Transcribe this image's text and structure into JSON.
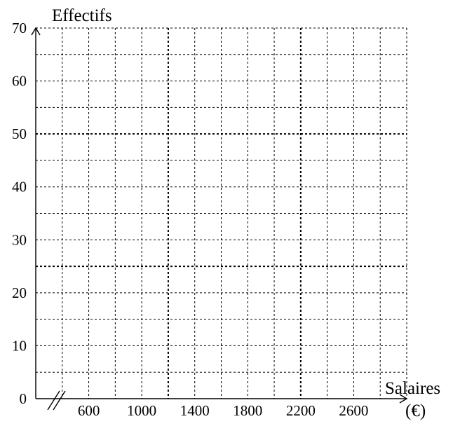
{
  "chart_data": {
    "type": "line",
    "title": "",
    "xlabel": "Salaires",
    "xlabel_unit": "(€)",
    "ylabel": "Effectifs",
    "xlim": [
      200,
      3000
    ],
    "ylim": [
      0,
      70
    ],
    "x_ticks": [
      "600",
      "1000",
      "1400",
      "1800",
      "2200",
      "2600"
    ],
    "y_ticks": [
      "0",
      "10",
      "20",
      "30",
      "40",
      "50",
      "60",
      "70"
    ],
    "x_break": true,
    "grid": true,
    "series": []
  }
}
